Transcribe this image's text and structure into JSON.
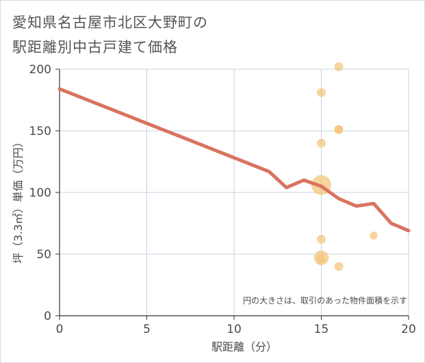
{
  "chart_data": {
    "type": "scatter",
    "title_lines": [
      "愛知県名古屋市北区大野町の",
      "駅距離別中古戸建て価格"
    ],
    "xlabel": "駅距離（分）",
    "ylabel": "坪（3.3㎡）単価（万円）",
    "xlim": [
      0,
      20
    ],
    "ylim": [
      0,
      200
    ],
    "x_ticks": [
      0,
      5,
      10,
      15,
      20
    ],
    "y_ticks": [
      0,
      50,
      100,
      150,
      200
    ],
    "grid": true,
    "note": "円の大きさは、取引のあった物件面積を示す",
    "colors": {
      "line": "#d9735f",
      "bubble": "#f2c57a",
      "grid": "#c9d3e0",
      "axis": "#333333"
    },
    "points": [
      {
        "x": 16,
        "y": 202,
        "size": 1
      },
      {
        "x": 15,
        "y": 181,
        "size": 1
      },
      {
        "x": 16,
        "y": 151,
        "size": 1
      },
      {
        "x": 16,
        "y": 151,
        "size": 1
      },
      {
        "x": 15,
        "y": 140,
        "size": 1
      },
      {
        "x": 15,
        "y": 106,
        "size": 5
      },
      {
        "x": 15,
        "y": 62,
        "size": 1
      },
      {
        "x": 18,
        "y": 65,
        "size": 0.8
      },
      {
        "x": 15,
        "y": 47,
        "size": 2.8
      },
      {
        "x": 15,
        "y": 46,
        "size": 1
      },
      {
        "x": 16,
        "y": 40,
        "size": 1
      }
    ],
    "trend": {
      "x": [
        0,
        12,
        13,
        14,
        15,
        16,
        17,
        18,
        19,
        20
      ],
      "y": [
        184,
        117,
        104,
        110,
        105,
        95,
        89,
        91,
        75,
        69
      ]
    }
  }
}
